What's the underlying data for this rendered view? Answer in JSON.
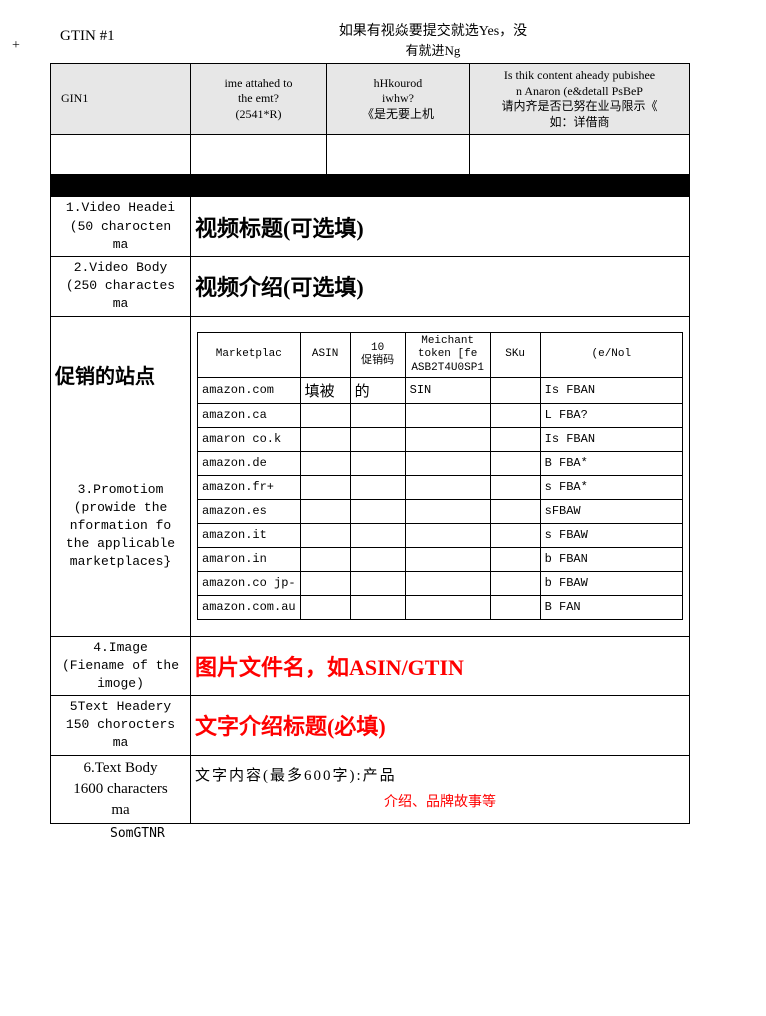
{
  "header": {
    "plus": "+",
    "gtin_title": "GTIN  #1",
    "note_line1": "如果有视焱要提交就选Yes，没",
    "note_line2": "有就进Ng"
  },
  "cols": {
    "c1": "GIN1",
    "c2a": "ime attahed to",
    "c2b": "the emt?",
    "c2c": "(2541*R)",
    "c3a": "hHkourod",
    "c3b": "iwhw?",
    "c3c": "《是无要上机",
    "c4a": "Is thik content aheady pubishee",
    "c4b": "n Anaron   (e&detall PsBeP",
    "c4c": "请内齐是否已努在业马限示《",
    "c4d": "如：详借商"
  },
  "rows": {
    "r1_label_a": "1.Video Headei",
    "r1_label_b": "(50 charocten",
    "r1_label_c": "ma",
    "r1_value": "视频标题(可选填)",
    "r2_label_a": "2.Video Body",
    "r2_label_b": "(250  charactes",
    "r2_label_c": "ma",
    "r2_value": "视频介绍(可选填)",
    "r3_overlay": "促销的站点",
    "r3_label_a": "3.Promotiom",
    "r3_label_b": "(prowide the",
    "r3_label_c": "nformation fo",
    "r3_label_d": "the applicable",
    "r3_label_e": "marketplaces}",
    "r4_label_a": "4.Image",
    "r4_label_b": "(Fiename of the",
    "r4_label_c": "imoge)",
    "r4_value": "图片文件名，如ASIN/GTIN",
    "r5_label_a": "5Text Headery",
    "r5_label_b": "150 chorocters",
    "r5_label_c": "ma",
    "r5_value": "文字介绍标题(必填)",
    "r6_label_a": "6.Text Body",
    "r6_label_b": "1600 characters",
    "r6_label_c": "ma",
    "r6_value_a": "文字内容(最多600字):产品",
    "r6_value_b": "介绍、品牌故事等"
  },
  "inner": {
    "h1": "Marketplac",
    "h2": "ASIN",
    "h3a": "10",
    "h3b": "促销码",
    "h4a": "Meichant",
    "h4b": "token [fe",
    "h4c": "ASB2T4U0SP1",
    "h5": "SKu",
    "h6": "(e/Nol",
    "fill_a": "填被",
    "fill_b": "的",
    "fill_c": "SIN",
    "mp": [
      "amazon.com",
      "amazon.ca",
      "amaron   co.k",
      "amazon.de",
      "amazon.fr+",
      "amazon.es",
      "amazon.it",
      "amaron.in",
      "amazon.co jp-",
      "amazon.com.au"
    ],
    "fba": [
      "Is FBAN",
      "L FBA?",
      "Is FBAN",
      "B FBA*",
      "s FBA*",
      "sFBAW",
      "s FBAW",
      "b FBAN",
      "b FBAW",
      "B   FAN"
    ]
  },
  "footer": "SomGTNR"
}
